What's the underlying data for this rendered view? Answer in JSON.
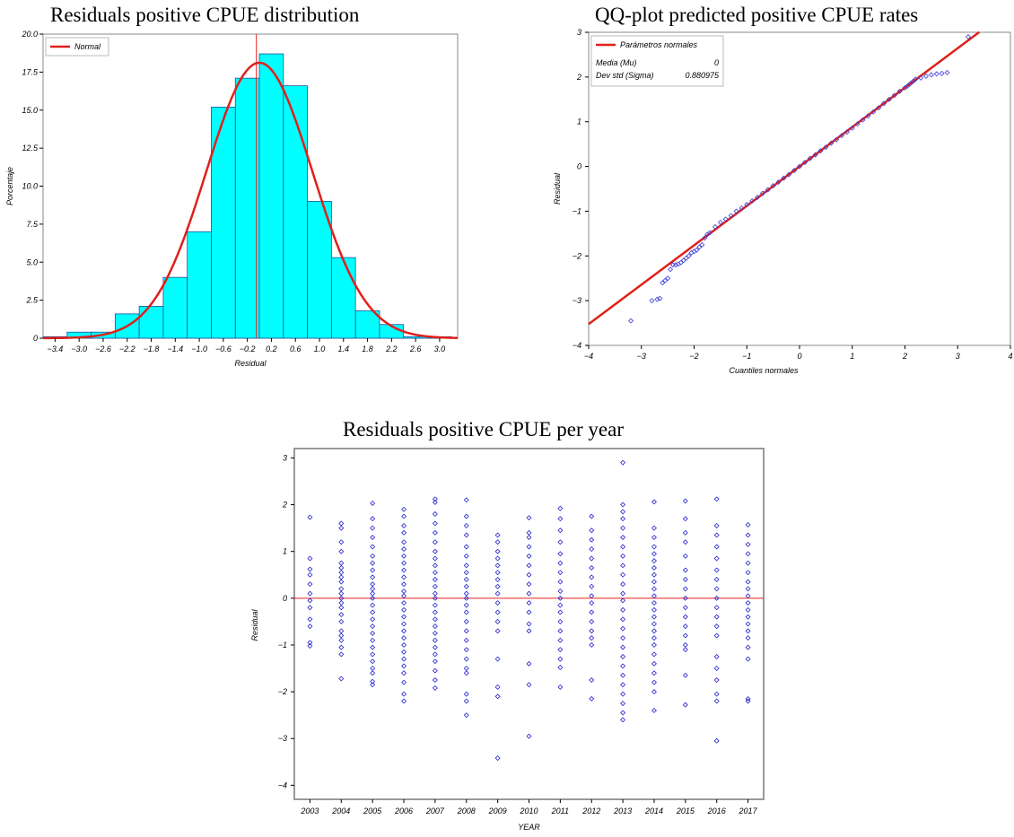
{
  "chart_data": [
    {
      "type": "bar",
      "title": "Residuals positive CPUE distribution",
      "xlabel": "Residual",
      "ylabel": "Porcentaje",
      "bin_edges": [
        -3.6,
        -3.2,
        -2.8,
        -2.4,
        -2.0,
        -1.6,
        -1.2,
        -0.8,
        -0.4,
        0.0,
        0.4,
        0.8,
        1.2,
        1.6,
        2.0,
        2.4,
        2.8,
        3.2
      ],
      "values": [
        0.1,
        0.4,
        0.4,
        1.6,
        2.1,
        4.0,
        7.0,
        15.2,
        17.1,
        18.7,
        16.6,
        9.0,
        5.3,
        1.8,
        0.9,
        0.1,
        0.1
      ],
      "xticks": [
        -3.4,
        -3.0,
        -2.6,
        -2.2,
        -1.8,
        -1.4,
        -1.0,
        -0.6,
        -0.2,
        0.2,
        0.6,
        1.0,
        1.4,
        1.8,
        2.2,
        2.6,
        3.0
      ],
      "yticks": [
        0,
        2.5,
        5.0,
        7.5,
        10.0,
        12.5,
        15.0,
        17.5,
        20.0
      ],
      "xlim": [
        -3.6,
        3.3
      ],
      "ylim": [
        0,
        20
      ],
      "normal_curve": {
        "mu": 0,
        "sigma": 0.880975,
        "bin_width": 0.4
      },
      "reference_line_x": -0.05,
      "legend": [
        "Normal"
      ],
      "legend_position": "top-left",
      "colors": {
        "bars": "#00ffff",
        "bar_edge": "#1f4fa0",
        "curve": "#e0201b"
      }
    },
    {
      "type": "scatter",
      "title": "QQ-plot predicted positive CPUE rates",
      "xlabel": "Cuantiles normales",
      "ylabel": "Residual",
      "xticks": [
        -4,
        -3,
        -2,
        -1,
        0,
        1,
        2,
        3,
        4
      ],
      "yticks": [
        -4,
        -3,
        -2,
        -1,
        0,
        1,
        2,
        3
      ],
      "xlim": [
        -4,
        4
      ],
      "ylim": [
        -4,
        3
      ],
      "reference_line": {
        "intercept": 0,
        "slope": 0.880975
      },
      "points_x": [
        -3.2,
        -2.8,
        -2.7,
        -2.65,
        -2.6,
        -2.55,
        -2.5,
        -2.45,
        -2.4,
        -2.35,
        -2.3,
        -2.25,
        -2.2,
        -2.15,
        -2.1,
        -2.05,
        -2.0,
        -1.95,
        -1.9,
        -1.85,
        -1.8,
        -1.75,
        -1.7,
        -1.6,
        -1.5,
        -1.4,
        -1.3,
        -1.2,
        -1.1,
        -1.0,
        -0.9,
        -0.8,
        -0.7,
        -0.6,
        -0.5,
        -0.4,
        -0.3,
        -0.2,
        -0.1,
        0.0,
        0.1,
        0.2,
        0.3,
        0.4,
        0.5,
        0.6,
        0.7,
        0.8,
        0.9,
        1.0,
        1.1,
        1.2,
        1.3,
        1.4,
        1.5,
        1.6,
        1.7,
        1.8,
        1.9,
        2.0,
        2.05,
        2.1,
        2.15,
        2.2,
        2.3,
        2.4,
        2.5,
        2.6,
        2.7,
        2.8,
        3.2
      ],
      "points_y": [
        -3.45,
        -3.0,
        -2.97,
        -2.95,
        -2.6,
        -2.55,
        -2.5,
        -2.3,
        -2.2,
        -2.2,
        -2.18,
        -2.15,
        -2.1,
        -2.05,
        -2.0,
        -1.93,
        -1.9,
        -1.87,
        -1.8,
        -1.75,
        -1.6,
        -1.52,
        -1.48,
        -1.35,
        -1.25,
        -1.18,
        -1.1,
        -1.0,
        -0.93,
        -0.85,
        -0.77,
        -0.69,
        -0.6,
        -0.52,
        -0.43,
        -0.35,
        -0.26,
        -0.18,
        -0.09,
        0.0,
        0.09,
        0.18,
        0.26,
        0.35,
        0.43,
        0.52,
        0.6,
        0.69,
        0.77,
        0.86,
        0.95,
        1.04,
        1.13,
        1.22,
        1.31,
        1.41,
        1.5,
        1.59,
        1.68,
        1.76,
        1.8,
        1.85,
        1.9,
        1.95,
        1.98,
        2.02,
        2.05,
        2.07,
        2.08,
        2.1,
        2.9
      ],
      "legend": [
        "Parámetros normales"
      ],
      "legend_position": "top-left",
      "stats": [
        {
          "label": "Media (Mu)",
          "value": "0"
        },
        {
          "label": "Dev std (Sigma)",
          "value": "0.880975"
        }
      ],
      "colors": {
        "points": "#3a3ad8",
        "line": "#e0201b"
      }
    },
    {
      "type": "scatter",
      "title": "Residuals positive CPUE per year",
      "xlabel": "YEAR",
      "ylabel": "Residual",
      "categories": [
        "2003",
        "2004",
        "2005",
        "2006",
        "2007",
        "2008",
        "2009",
        "2010",
        "2011",
        "2012",
        "2013",
        "2014",
        "2015",
        "2016",
        "2017"
      ],
      "yticks": [
        -4,
        -3,
        -2,
        -1,
        0,
        1,
        2,
        3
      ],
      "ylim": [
        -4.3,
        3.2
      ],
      "reference_line_y": 0,
      "points": {
        "2003": [
          1.73,
          0.85,
          0.62,
          0.5,
          0.3,
          0.1,
          -0.05,
          -0.2,
          -0.45,
          -0.6,
          -0.95,
          -1.02
        ],
        "2004": [
          1.6,
          1.5,
          1.2,
          1.0,
          0.75,
          0.65,
          0.55,
          0.45,
          0.35,
          0.2,
          0.1,
          0.0,
          -0.1,
          -0.2,
          -0.35,
          -0.5,
          -0.7,
          -0.8,
          -0.9,
          -1.05,
          -1.2,
          -1.72
        ],
        "2005": [
          2.03,
          1.7,
          1.5,
          1.3,
          1.1,
          0.9,
          0.75,
          0.6,
          0.45,
          0.3,
          0.2,
          0.1,
          0.0,
          -0.15,
          -0.3,
          -0.45,
          -0.6,
          -0.75,
          -0.9,
          -1.05,
          -1.2,
          -1.35,
          -1.5,
          -1.6,
          -1.78,
          -1.85
        ],
        "2006": [
          1.9,
          1.75,
          1.55,
          1.4,
          1.2,
          1.05,
          0.9,
          0.75,
          0.6,
          0.45,
          0.3,
          0.15,
          0.05,
          -0.1,
          -0.25,
          -0.4,
          -0.55,
          -0.7,
          -0.85,
          -1.0,
          -1.15,
          -1.3,
          -1.45,
          -1.6,
          -1.8,
          -2.05,
          -2.2
        ],
        "2007": [
          2.12,
          2.05,
          1.8,
          1.6,
          1.4,
          1.2,
          1.0,
          0.85,
          0.7,
          0.55,
          0.4,
          0.25,
          0.1,
          0.0,
          -0.15,
          -0.3,
          -0.45,
          -0.6,
          -0.75,
          -0.9,
          -1.05,
          -1.2,
          -1.35,
          -1.55,
          -1.75,
          -1.92
        ],
        "2008": [
          2.1,
          1.75,
          1.55,
          1.35,
          1.1,
          0.9,
          0.7,
          0.55,
          0.4,
          0.25,
          0.1,
          0.0,
          -0.15,
          -0.3,
          -0.5,
          -0.7,
          -0.9,
          -1.1,
          -1.3,
          -1.5,
          -1.6,
          -2.05,
          -2.2,
          -2.5
        ],
        "2009": [
          1.35,
          1.2,
          1.0,
          0.85,
          0.7,
          0.55,
          0.4,
          0.25,
          0.1,
          -0.1,
          -0.3,
          -0.5,
          -0.7,
          -1.3,
          -1.9,
          -2.1,
          -3.42
        ],
        "2010": [
          1.72,
          1.4,
          1.3,
          1.1,
          0.9,
          0.7,
          0.5,
          0.3,
          0.1,
          -0.1,
          -0.3,
          -0.55,
          -0.7,
          -1.4,
          -1.85,
          -2.95
        ],
        "2011": [
          1.92,
          1.7,
          1.45,
          1.2,
          0.95,
          0.75,
          0.55,
          0.35,
          0.15,
          0.0,
          -0.15,
          -0.3,
          -0.5,
          -0.7,
          -0.9,
          -1.1,
          -1.3,
          -1.48,
          -1.9
        ],
        "2012": [
          1.75,
          1.45,
          1.25,
          1.05,
          0.85,
          0.65,
          0.45,
          0.25,
          0.05,
          -0.1,
          -0.3,
          -0.5,
          -0.7,
          -0.85,
          -1.0,
          -1.75,
          -2.15
        ],
        "2013": [
          2.9,
          2.0,
          1.85,
          1.7,
          1.5,
          1.3,
          1.1,
          0.9,
          0.7,
          0.5,
          0.3,
          0.1,
          -0.05,
          -0.25,
          -0.45,
          -0.65,
          -0.85,
          -1.05,
          -1.25,
          -1.45,
          -1.65,
          -1.85,
          -2.05,
          -2.25,
          -2.45,
          -2.6
        ],
        "2014": [
          2.06,
          1.5,
          1.3,
          1.1,
          0.95,
          0.8,
          0.65,
          0.5,
          0.35,
          0.2,
          0.05,
          -0.1,
          -0.25,
          -0.4,
          -0.55,
          -0.7,
          -0.85,
          -1.0,
          -1.2,
          -1.4,
          -1.6,
          -1.8,
          -2.0,
          -2.4
        ],
        "2015": [
          2.08,
          1.7,
          1.4,
          1.2,
          0.9,
          0.6,
          0.4,
          0.2,
          0.0,
          -0.2,
          -0.4,
          -0.6,
          -0.8,
          -1.0,
          -1.1,
          -1.65,
          -2.28
        ],
        "2016": [
          2.12,
          1.55,
          1.35,
          1.1,
          0.85,
          0.6,
          0.4,
          0.2,
          0.0,
          -0.2,
          -0.4,
          -0.6,
          -0.8,
          -1.25,
          -1.5,
          -1.75,
          -2.05,
          -2.2,
          -3.05
        ],
        "2017": [
          1.57,
          1.35,
          1.15,
          0.95,
          0.75,
          0.55,
          0.35,
          0.2,
          0.05,
          -0.1,
          -0.25,
          -0.4,
          -0.55,
          -0.7,
          -0.85,
          -1.05,
          -1.3,
          -2.15,
          -2.2
        ]
      },
      "colors": {
        "points": "#2222cc",
        "line": "#e0201b",
        "frame": "#999999"
      }
    }
  ]
}
